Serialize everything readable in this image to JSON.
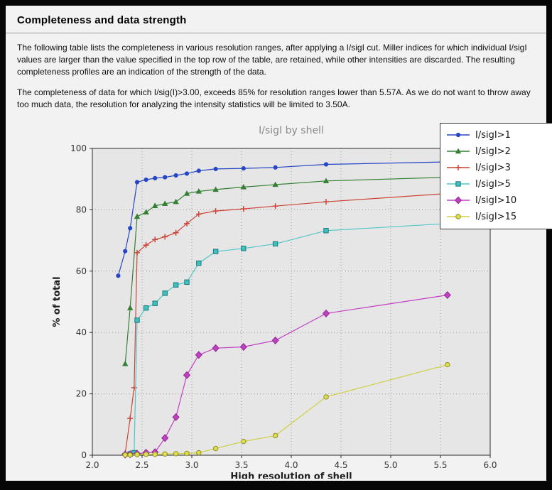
{
  "page": {
    "title": "Completeness and data strength",
    "paragraphs": [
      "The following table lists the completeness in various resolution ranges, after applying a I/sigI cut. Miller indices for which individual I/sigI values are larger than the value specified in the top row of the table, are retained, while other intensities are discarded. The resulting completeness profiles are an indication of the strength of the data.",
      "The completeness of data for which I/sig(I)>3.00, exceeds  85% for resolution ranges lower than 5.57A. As we do not want to throw away too much data, the resolution for analyzing the intensity statistics will be limited to 3.50A."
    ]
  },
  "chart_data": {
    "type": "line",
    "title": "I/sigI by shell",
    "xlabel": "High resolution of shell",
    "ylabel": "% of total",
    "xlim": [
      2.0,
      6.0
    ],
    "ylim": [
      0,
      100
    ],
    "xticks": [
      2.0,
      2.5,
      3.0,
      3.5,
      4.0,
      4.5,
      5.0,
      5.5,
      6.0
    ],
    "yticks": [
      0,
      20,
      40,
      60,
      80,
      100
    ],
    "grid": true,
    "legend_position": "top-right",
    "colors": {
      "plot_bg": "#e6e6e6",
      "figure_bg": "#f2f2f2",
      "grid": "#9b9b9b",
      "frame": "#2b2b2b",
      "title_color": "#8a8a8a"
    },
    "series": [
      {
        "name": "I/sigI>1",
        "color": "#2646c4",
        "marker": "circle",
        "marker_fill": "#2646c4",
        "marker_edge": "#1c339a",
        "x": [
          2.26,
          2.33,
          2.38,
          2.45,
          2.54,
          2.63,
          2.73,
          2.84,
          2.95,
          3.07,
          3.24,
          3.52,
          3.84,
          4.35,
          5.57
        ],
        "y": [
          58.5,
          66.5,
          74.0,
          89.0,
          89.8,
          90.3,
          90.6,
          91.2,
          91.8,
          92.7,
          93.3,
          93.5,
          93.8,
          94.8,
          95.6
        ]
      },
      {
        "name": "I/sigI>2",
        "color": "#358035",
        "marker": "triangle",
        "marker_fill": "#358035",
        "marker_edge": "#266026",
        "x": [
          2.33,
          2.38,
          2.45,
          2.54,
          2.63,
          2.73,
          2.84,
          2.95,
          3.07,
          3.24,
          3.52,
          3.84,
          4.35,
          5.57
        ],
        "y": [
          29.8,
          48.0,
          77.8,
          79.2,
          81.3,
          82.0,
          82.6,
          85.3,
          86.0,
          86.6,
          87.4,
          88.2,
          89.4,
          90.6
        ]
      },
      {
        "name": "I/sigI>3",
        "color": "#cb4437",
        "marker": "plus",
        "marker_fill": "#cb4437",
        "marker_edge": "#cb4437",
        "x": [
          2.33,
          2.38,
          2.42,
          2.45,
          2.54,
          2.63,
          2.73,
          2.84,
          2.95,
          3.07,
          3.24,
          3.52,
          3.84,
          4.35,
          5.57
        ],
        "y": [
          0.6,
          12.0,
          22.0,
          66.0,
          68.5,
          70.3,
          71.2,
          72.5,
          75.5,
          78.6,
          79.6,
          80.3,
          81.2,
          82.6,
          85.3
        ]
      },
      {
        "name": "I/sigI>5",
        "color": "#52c6c6",
        "marker": "square",
        "marker_fill": "#3fbfbf",
        "marker_edge": "#1c7a7a",
        "x": [
          2.38,
          2.42,
          2.45,
          2.54,
          2.63,
          2.73,
          2.84,
          2.95,
          3.07,
          3.24,
          3.52,
          3.84,
          4.35,
          5.57
        ],
        "y": [
          0.4,
          0.8,
          44.0,
          48.0,
          49.5,
          52.8,
          55.5,
          56.4,
          62.6,
          66.4,
          67.4,
          68.9,
          73.2,
          75.5
        ]
      },
      {
        "name": "I/sigI>10",
        "color": "#c33fc3",
        "marker": "diamond",
        "marker_fill": "#c33fc3",
        "marker_edge": "#8d2a8d",
        "x": [
          2.33,
          2.38,
          2.45,
          2.54,
          2.63,
          2.73,
          2.84,
          2.95,
          3.07,
          3.24,
          3.52,
          3.84,
          4.35,
          5.57
        ],
        "y": [
          0.2,
          0.3,
          0.5,
          0.8,
          1.0,
          5.6,
          12.4,
          26.1,
          32.7,
          34.9,
          35.3,
          37.4,
          46.2,
          52.2
        ]
      },
      {
        "name": "I/sigI>15",
        "color": "#cfd143",
        "marker": "circle-open",
        "marker_fill": "#e0e04e",
        "marker_edge": "#8f8f28",
        "x": [
          2.33,
          2.38,
          2.45,
          2.54,
          2.63,
          2.73,
          2.84,
          2.95,
          3.07,
          3.24,
          3.52,
          3.84,
          4.35,
          5.57
        ],
        "y": [
          0.1,
          0.1,
          0.2,
          0.3,
          0.3,
          0.4,
          0.5,
          0.6,
          0.8,
          2.2,
          4.5,
          6.4,
          19.0,
          29.5
        ]
      }
    ]
  }
}
